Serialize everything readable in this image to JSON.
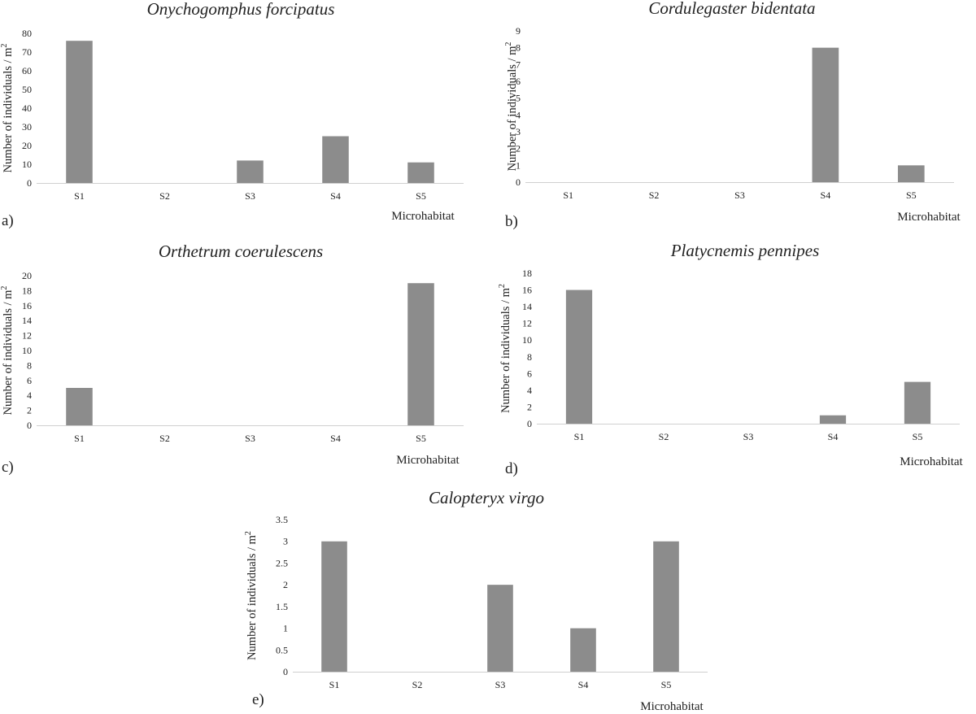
{
  "chart_data": [
    {
      "type": "bar",
      "panel": "a)",
      "title": "Onychogomphus forcipatus",
      "xlabel": "Microhabitat",
      "ylabel": "Number of individuals / m",
      "ylabel_sup": "2",
      "categories": [
        "S1",
        "S2",
        "S3",
        "S4",
        "S5"
      ],
      "values": [
        76,
        0,
        12,
        25,
        11
      ],
      "ylim": [
        0,
        80
      ],
      "yticks": [
        "0",
        "10",
        "20",
        "30",
        "40",
        "50",
        "60",
        "70",
        "80"
      ],
      "bar_color": "#8c8c8c",
      "grid": false,
      "legend": "none"
    },
    {
      "type": "bar",
      "panel": "b)",
      "title": "Cordulegaster bidentata",
      "xlabel": "Microhabitat",
      "ylabel": "Number of individuals / m",
      "ylabel_sup": "2",
      "categories": [
        "S1",
        "S2",
        "S3",
        "S4",
        "S5"
      ],
      "values": [
        0,
        0,
        0,
        8,
        1
      ],
      "ylim": [
        0,
        9
      ],
      "yticks": [
        "0",
        "1",
        "2",
        "3",
        "4",
        "5",
        "6",
        "7",
        "8",
        "9"
      ],
      "bar_color": "#8c8c8c",
      "grid": false,
      "legend": "none"
    },
    {
      "type": "bar",
      "panel": "c)",
      "title": "Orthetrum coerulescens",
      "xlabel": "Microhabitat",
      "ylabel": "Number of individuals / m",
      "ylabel_sup": "2",
      "categories": [
        "S1",
        "S2",
        "S3",
        "S4",
        "S5"
      ],
      "values": [
        5,
        0,
        0,
        0,
        19
      ],
      "ylim": [
        0,
        20
      ],
      "yticks": [
        "0",
        "2",
        "4",
        "6",
        "8",
        "10",
        "12",
        "14",
        "16",
        "18",
        "20"
      ],
      "bar_color": "#8c8c8c",
      "grid": false,
      "legend": "none"
    },
    {
      "type": "bar",
      "panel": "d)",
      "title": "Platycnemis pennipes",
      "xlabel": "Microhabitat",
      "ylabel": "Number of individuals / m",
      "ylabel_sup": "2",
      "categories": [
        "S1",
        "S2",
        "S3",
        "S4",
        "S5"
      ],
      "values": [
        16,
        0,
        0,
        1,
        5
      ],
      "ylim": [
        0,
        18
      ],
      "yticks": [
        "0",
        "2",
        "4",
        "6",
        "8",
        "10",
        "12",
        "14",
        "16",
        "18"
      ],
      "bar_color": "#8c8c8c",
      "grid": false,
      "legend": "none"
    },
    {
      "type": "bar",
      "panel": "e)",
      "title": "Calopteryx virgo",
      "xlabel": "Microhabitat",
      "ylabel": "Number of individuals / m",
      "ylabel_sup": "2",
      "categories": [
        "S1",
        "S2",
        "S3",
        "S4",
        "S5"
      ],
      "values": [
        3,
        0,
        2,
        1,
        3
      ],
      "ylim": [
        0,
        3.5
      ],
      "yticks": [
        "0",
        "0.5",
        "1",
        "1.5",
        "2",
        "2.5",
        "3",
        "3.5"
      ],
      "bar_color": "#8c8c8c",
      "grid": false,
      "legend": "none"
    }
  ]
}
